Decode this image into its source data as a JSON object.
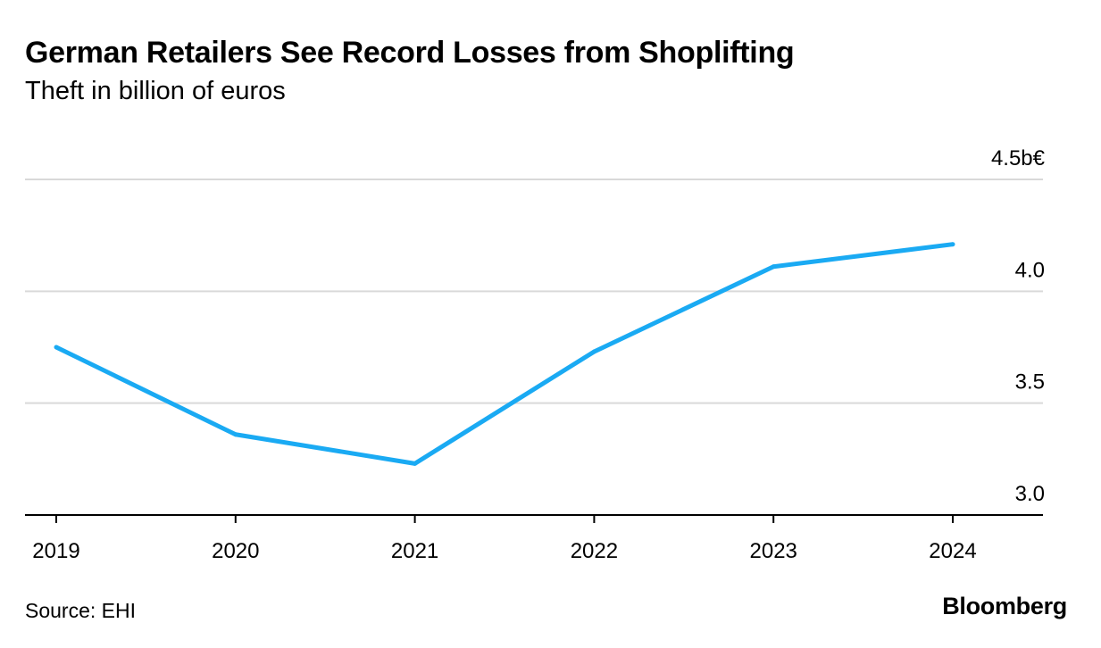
{
  "header": {
    "title": "German Retailers See Record Losses from Shoplifting",
    "subtitle": "Theft in billion of euros"
  },
  "footer": {
    "source": "Source: EHI",
    "brand": "Bloomberg"
  },
  "colors": {
    "line": "#1aaaf3",
    "grid": "#d9d9d9",
    "axis": "#000000",
    "text": "#000000"
  },
  "chart_data": {
    "type": "line",
    "title": "German Retailers See Record Losses from Shoplifting",
    "subtitle": "Theft in billion of euros",
    "xlabel": "",
    "ylabel": "",
    "x": [
      "2019",
      "2020",
      "2021",
      "2022",
      "2023",
      "2024"
    ],
    "series": [
      {
        "values": [
          3.75,
          3.36,
          3.23,
          3.73,
          4.11,
          4.21
        ]
      }
    ],
    "ylim": [
      3.0,
      4.5
    ],
    "yticks": [
      3.0,
      3.5,
      4.0,
      4.5
    ],
    "ytick_labels": [
      "3.0",
      "3.5",
      "4.0",
      "4.5b€"
    ],
    "y_axis_position": "right",
    "grid": true
  }
}
